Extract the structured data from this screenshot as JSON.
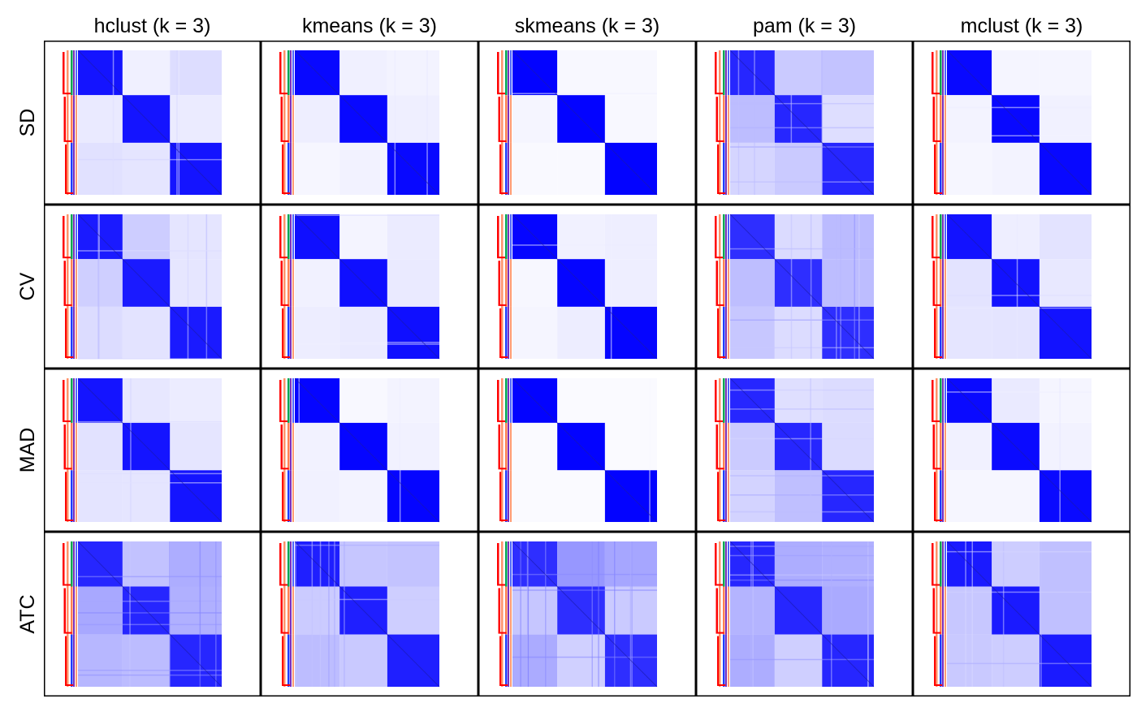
{
  "chart_data": {
    "type": "heatmap",
    "title": "",
    "k": 3,
    "columns": [
      "hclust (k = 3)",
      "kmeans (k = 3)",
      "skmeans (k = 3)",
      "pam (k = 3)",
      "mclust (k = 3)"
    ],
    "rows": [
      "SD",
      "CV",
      "MAD",
      "ATC"
    ],
    "cluster_proportions": [
      0.31,
      0.33,
      0.36
    ],
    "value_range": [
      0,
      1
    ],
    "color_low": "#ffffff",
    "color_high": "#0000ff",
    "annotation_colors": [
      "#ff0000",
      "#ff7f50",
      "#00a651",
      "#7b2fbe",
      "#1e3cff"
    ],
    "off_diagonal_consensus": [
      [
        0.1,
        0.05,
        0.03,
        0.2,
        0.04
      ],
      [
        0.15,
        0.07,
        0.05,
        0.22,
        0.08
      ],
      [
        0.1,
        0.04,
        0.03,
        0.18,
        0.06
      ],
      [
        0.25,
        0.2,
        0.3,
        0.25,
        0.18
      ]
    ],
    "within_cluster_consensus": [
      [
        0.92,
        0.97,
        0.99,
        0.85,
        0.97
      ],
      [
        0.9,
        0.94,
        0.98,
        0.82,
        0.93
      ],
      [
        0.92,
        0.98,
        0.99,
        0.85,
        0.96
      ],
      [
        0.85,
        0.88,
        0.82,
        0.85,
        0.9
      ]
    ]
  }
}
